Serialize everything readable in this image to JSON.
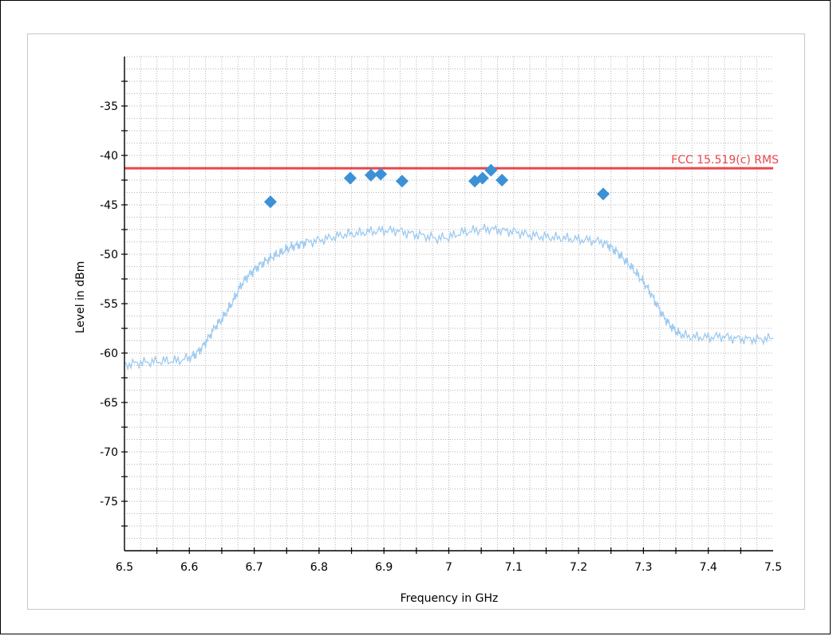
{
  "chart_data": {
    "type": "line",
    "title": "",
    "xlabel": "Frequency in GHz",
    "ylabel": "Level in dBm",
    "xlim": [
      6.5,
      7.5
    ],
    "ylim": [
      -80,
      -30
    ],
    "x_ticks": [
      6.5,
      6.6,
      6.7,
      6.8,
      6.9,
      7,
      7.1,
      7.2,
      7.3,
      7.4,
      7.5
    ],
    "x_tick_labels": [
      "6.5",
      "6.6",
      "6.7",
      "6.8",
      "6.9",
      "7",
      "7.1",
      "7.2",
      "7.3",
      "7.4",
      "7.5"
    ],
    "y_ticks": [
      -75,
      -70,
      -65,
      -60,
      -55,
      -50,
      -45,
      -40,
      -35
    ],
    "y_tick_labels": [
      "-75",
      "-70",
      "-65",
      "-60",
      "-55",
      "-50",
      "-45",
      "-40",
      "-35"
    ],
    "grid": true,
    "limit_line": {
      "label": "FCC 15.519(c) RMS",
      "y": -41.3,
      "color": "#e8474b"
    },
    "spectrum": {
      "color": "#9ecaf0",
      "x": [
        6.5,
        6.52,
        6.54,
        6.56,
        6.58,
        6.6,
        6.61,
        6.62,
        6.63,
        6.64,
        6.65,
        6.66,
        6.67,
        6.68,
        6.69,
        6.7,
        6.71,
        6.72,
        6.73,
        6.74,
        6.75,
        6.76,
        6.77,
        6.78,
        6.8,
        6.82,
        6.84,
        6.86,
        6.88,
        6.9,
        6.92,
        6.94,
        6.96,
        6.98,
        7.0,
        7.02,
        7.04,
        7.06,
        7.08,
        7.1,
        7.12,
        7.14,
        7.16,
        7.18,
        7.2,
        7.22,
        7.24,
        7.25,
        7.26,
        7.27,
        7.28,
        7.29,
        7.3,
        7.31,
        7.32,
        7.33,
        7.34,
        7.35,
        7.36,
        7.38,
        7.4,
        7.42,
        7.44,
        7.46,
        7.48,
        7.5
      ],
      "y": [
        -61.2,
        -61.0,
        -60.9,
        -60.8,
        -60.8,
        -60.5,
        -60.1,
        -59.4,
        -58.4,
        -57.3,
        -56.6,
        -55.6,
        -54.4,
        -53.1,
        -52.2,
        -51.6,
        -51.0,
        -50.6,
        -50.2,
        -49.9,
        -49.5,
        -49.2,
        -49.0,
        -48.8,
        -48.6,
        -48.3,
        -48.0,
        -47.9,
        -47.7,
        -47.6,
        -47.6,
        -47.9,
        -48.1,
        -48.4,
        -48.3,
        -47.8,
        -47.6,
        -47.4,
        -47.6,
        -47.7,
        -48.0,
        -48.2,
        -48.3,
        -48.4,
        -48.5,
        -48.6,
        -48.8,
        -49.3,
        -49.8,
        -50.5,
        -51.2,
        -52.0,
        -52.8,
        -53.8,
        -55.0,
        -56.2,
        -57.1,
        -57.8,
        -58.2,
        -58.4,
        -58.4,
        -58.3,
        -58.5,
        -58.6,
        -58.6,
        -58.5
      ]
    },
    "markers": {
      "color": "#3c91d6",
      "points": [
        {
          "x": 6.725,
          "y": -44.7
        },
        {
          "x": 6.848,
          "y": -42.3
        },
        {
          "x": 6.88,
          "y": -42.0
        },
        {
          "x": 6.895,
          "y": -41.9
        },
        {
          "x": 6.928,
          "y": -42.6
        },
        {
          "x": 7.04,
          "y": -42.6
        },
        {
          "x": 7.052,
          "y": -42.3
        },
        {
          "x": 7.065,
          "y": -41.5
        },
        {
          "x": 7.082,
          "y": -42.5
        },
        {
          "x": 7.238,
          "y": -43.9
        }
      ]
    }
  }
}
